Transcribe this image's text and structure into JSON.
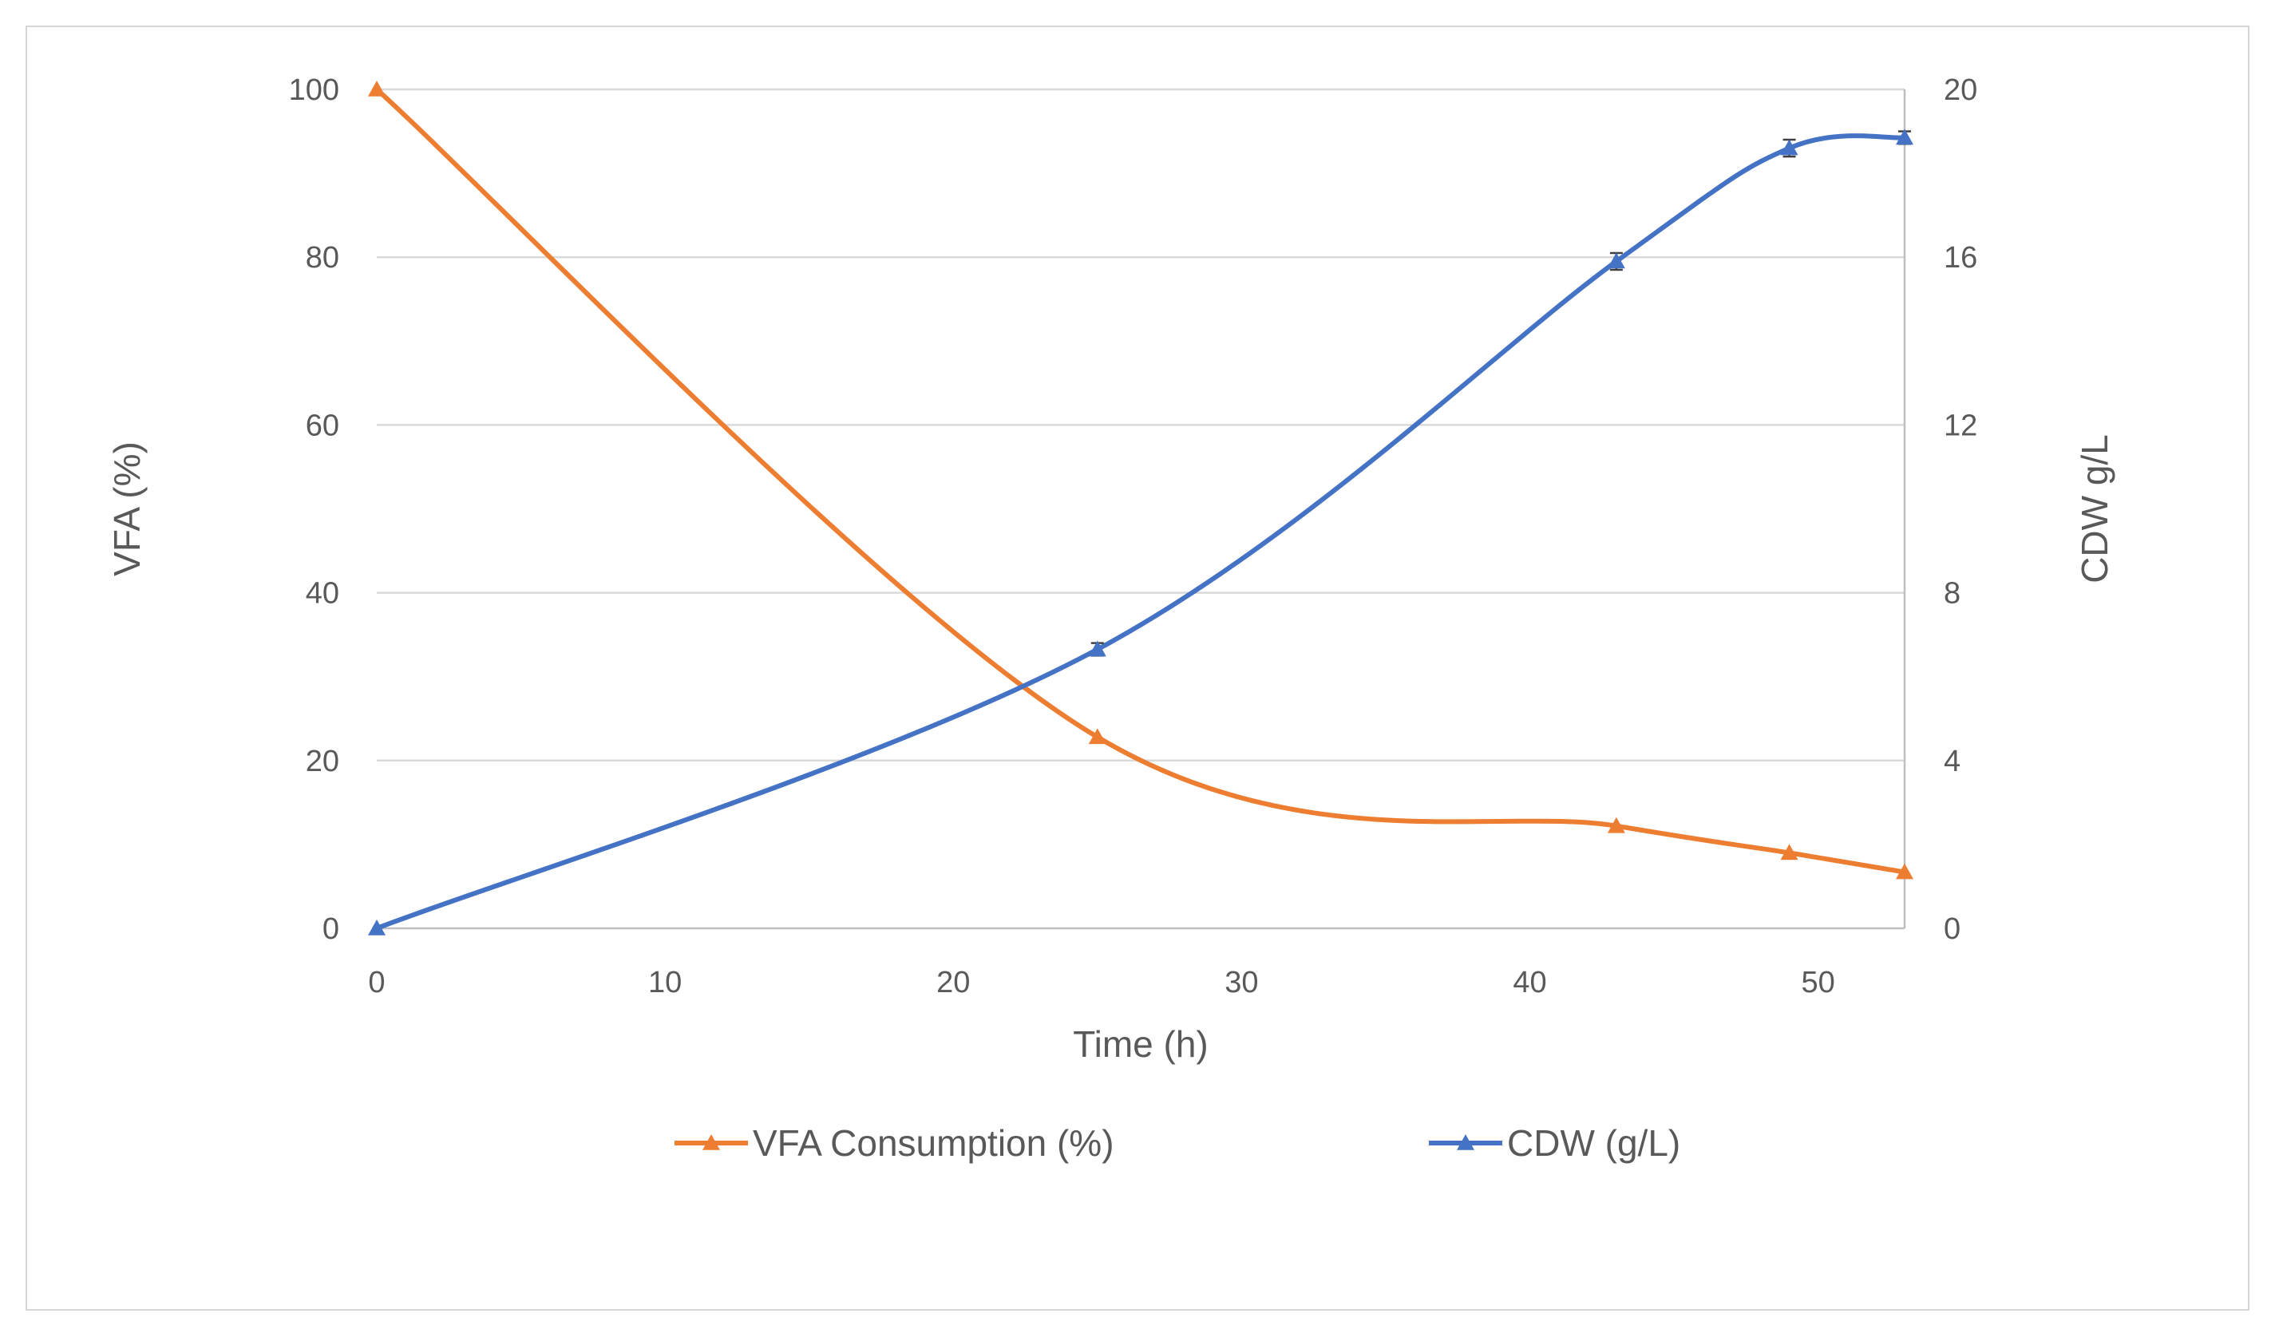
{
  "chart_data": {
    "type": "line",
    "title": "",
    "xlabel": "Time (h)",
    "ylabel": "VFA (%)",
    "y2label": "CDW g/L",
    "xlim": [
      0,
      53
    ],
    "ylim": [
      0,
      100
    ],
    "y2lim": [
      0,
      20
    ],
    "xticks": [
      0,
      10,
      20,
      30,
      40,
      50
    ],
    "yticks": [
      0,
      20,
      40,
      60,
      80,
      100
    ],
    "y2ticks": [
      0,
      4,
      8,
      12,
      16,
      20
    ],
    "grid": true,
    "legend_position": "bottom",
    "series": [
      {
        "name": "VFA Consumption (%)",
        "axis": "left",
        "color": "#ED7D31",
        "marker": "triangle",
        "x": [
          0,
          25,
          43,
          49,
          53
        ],
        "y": [
          100,
          22.8,
          12.2,
          9.0,
          6.7
        ],
        "smooth": true
      },
      {
        "name": "CDW (g/L)",
        "axis": "right",
        "color": "#4472C4",
        "marker": "triangle",
        "x": [
          0,
          25,
          43,
          49,
          53
        ],
        "y": [
          0,
          6.65,
          15.9,
          18.6,
          18.85
        ],
        "error": [
          0,
          0.15,
          0.2,
          0.2,
          0.15
        ],
        "smooth": true
      }
    ]
  }
}
